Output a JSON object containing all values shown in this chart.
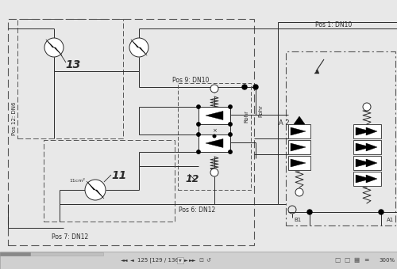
{
  "bg_color": "#e8e8e8",
  "main_bg": "#ffffff",
  "lc": "#2a2a2a",
  "toolbar_bg": "#d0d0d0",
  "labels": {
    "pos1": "Pos 1: DN10",
    "pos6": "Pos 6: DN12",
    "pos7": "Pos 7: DN12",
    "pos9": "Pos 9: DN10",
    "pos12": "Pos 12: DN6",
    "n13": "13",
    "n11": "11",
    "n12": "12",
    "A2": "A 2",
    "A1": "A1",
    "B1": "B1",
    "Rohr": "Rohr",
    "cm2": "11cm²",
    "nav": "125 [129 / 136]",
    "pct": "300%"
  },
  "figw": 5.0,
  "figh": 3.4,
  "dpi": 100
}
